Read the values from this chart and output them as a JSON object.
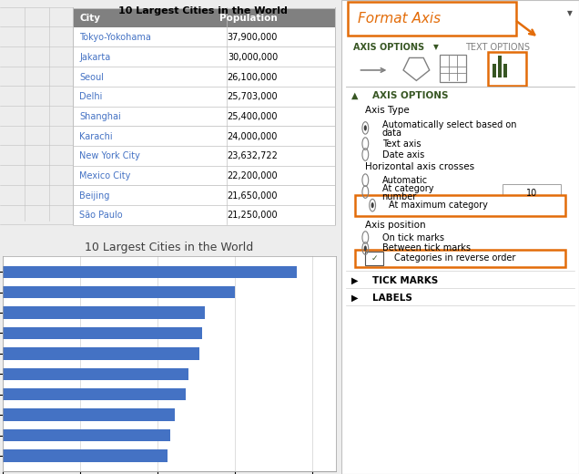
{
  "cities": [
    "Tokyo-Yokohama",
    "Jakarta",
    "Seoul",
    "Delhi",
    "Shanghai",
    "Karachi",
    "New York City",
    "Mexico City",
    "Beijing",
    "São Paulo"
  ],
  "populations": [
    37900000,
    30000000,
    26100000,
    25703000,
    25400000,
    24000000,
    23632722,
    22200000,
    21650000,
    21250000
  ],
  "pop_labels": [
    "37,900,000",
    "30,000,000",
    "26,100,000",
    "25,703,000",
    "25,400,000",
    "24,000,000",
    "23,632,722",
    "22,200,000",
    "21,650,000",
    "21,250,000"
  ],
  "chart_title": "10 Largest Cities in the World",
  "table_title": "10 Largest Cities in the World",
  "bar_color": "#4472C4",
  "table_header_bg": "#808080",
  "table_header_fg": "#FFFFFF",
  "table_city_fg": "#4472C4",
  "table_pop_fg": "#000000",
  "table_border_color": "#C0C0C0",
  "panel_title": "Format Axis",
  "panel_title_color": "#E36C09",
  "panel_border_color": "#E36C09",
  "axis_options_color": "#375623",
  "highlight_box_color": "#E36C09"
}
